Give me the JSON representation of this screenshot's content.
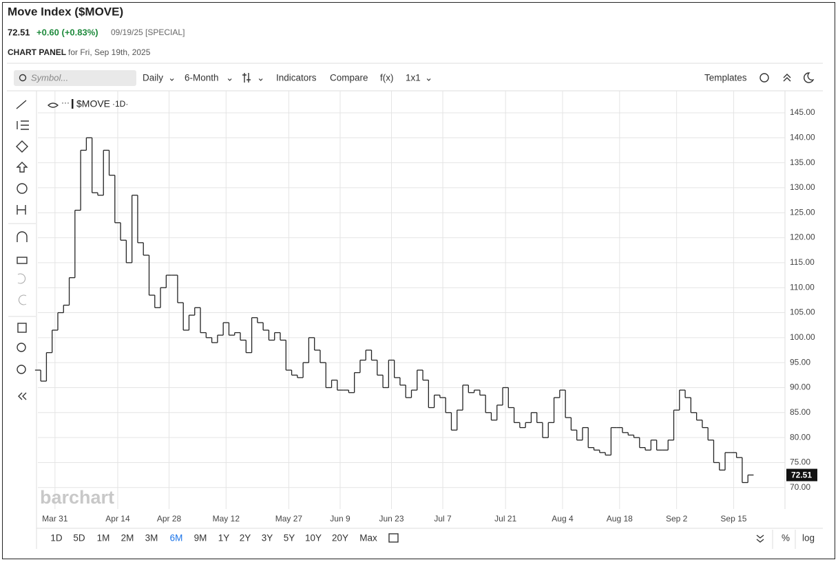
{
  "header": {
    "title": "Move Index ($MOVE)",
    "price": "72.51",
    "change": "+0.60 (+0.83%)",
    "date": "09/19/25 [SPECIAL]",
    "panel": "CHART PANEL",
    "panel_date": "for Fri, Sep 19th, 2025"
  },
  "toolbar": {
    "symbol": "Symbol...",
    "interval": "Daily",
    "period": "6-Month",
    "indicators": "Indicators",
    "compare": "Compare",
    "fx": "f(x)",
    "layout": "1x1",
    "templates": "Templates"
  },
  "legend": {
    "symbol": "$MOVE",
    "interval": "·1D·"
  },
  "watermark": "barchart",
  "ranges": [
    "1D",
    "5D",
    "1M",
    "2M",
    "3M",
    "6M",
    "9M",
    "1Y",
    "2Y",
    "3Y",
    "5Y",
    "10Y",
    "20Y",
    "Max"
  ],
  "footer": {
    "percent": "%",
    "log": "log"
  },
  "chart_data": {
    "type": "step",
    "series": [
      {
        "name": "$MOVE",
        "color": "#222222",
        "values": [
          93.5,
          91.3,
          97,
          101.5,
          105,
          106.5,
          112,
          125.5,
          137.5,
          140,
          129,
          128.5,
          137.5,
          132.5,
          123,
          119.5,
          115,
          128.5,
          119,
          116.5,
          108.5,
          106,
          110,
          112.5,
          112.5,
          107,
          101.5,
          104.5,
          106,
          101,
          100,
          99,
          100.5,
          103,
          100.5,
          101,
          99.5,
          97,
          104,
          103,
          101.5,
          99.5,
          101,
          99.5,
          93.5,
          92.5,
          92,
          95,
          100,
          97.5,
          95,
          90,
          91.5,
          89.5,
          89.5,
          89,
          93,
          95.5,
          97.5,
          95.5,
          92.5,
          90,
          95.5,
          92,
          90.5,
          88,
          89.5,
          93.5,
          91.5,
          86,
          88.5,
          88,
          85,
          81.5,
          85.5,
          90.5,
          89,
          89.5,
          88.5,
          85,
          83.5,
          86.5,
          90,
          86,
          83,
          82,
          83,
          85,
          83,
          80,
          83,
          88,
          89.5,
          84,
          81.5,
          79.5,
          82,
          78,
          77.5,
          77,
          76.5,
          82,
          82,
          81,
          80.5,
          80,
          78,
          77.5,
          79.5,
          77.5,
          77.5,
          79.5,
          85.5,
          89.5,
          88,
          85,
          83.5,
          82,
          79.5,
          75,
          73.5,
          77,
          77,
          76,
          71,
          72.51
        ]
      }
    ],
    "xlim": [
      0,
      131
    ],
    "xticks": [
      {
        "value": 3,
        "label": "Mar 31"
      },
      {
        "value": 14,
        "label": "Apr 14"
      },
      {
        "value": 23,
        "label": "Apr 28"
      },
      {
        "value": 33,
        "label": "May 12"
      },
      {
        "value": 44,
        "label": "May 27"
      },
      {
        "value": 53,
        "label": "Jun 9"
      },
      {
        "value": 62,
        "label": "Jun 23"
      },
      {
        "value": 71,
        "label": "Jul 7"
      },
      {
        "value": 82,
        "label": "Jul 21"
      },
      {
        "value": 92,
        "label": "Aug 4"
      },
      {
        "value": 102,
        "label": "Aug 18"
      },
      {
        "value": 112,
        "label": "Sep 2"
      },
      {
        "value": 122,
        "label": "Sep 15"
      }
    ],
    "ylim": [
      65.7,
      149.4
    ],
    "yticks": [
      {
        "value": 70,
        "label": "70.00"
      },
      {
        "value": 75,
        "label": "75.00"
      },
      {
        "value": 80,
        "label": "80.00"
      },
      {
        "value": 85,
        "label": "85.00"
      },
      {
        "value": 90,
        "label": "90.00"
      },
      {
        "value": 95,
        "label": "95.00"
      },
      {
        "value": 100,
        "label": "100.00"
      },
      {
        "value": 105,
        "label": "105.00"
      },
      {
        "value": 110,
        "label": "110.00"
      },
      {
        "value": 115,
        "label": "115.00"
      },
      {
        "value": 120,
        "label": "120.00"
      },
      {
        "value": 125,
        "label": "125.00"
      },
      {
        "value": 130,
        "label": "130.00"
      },
      {
        "value": 135,
        "label": "135.00"
      },
      {
        "value": 140,
        "label": "140.00"
      },
      {
        "value": 145,
        "label": "145.00"
      }
    ],
    "grid": true
  }
}
